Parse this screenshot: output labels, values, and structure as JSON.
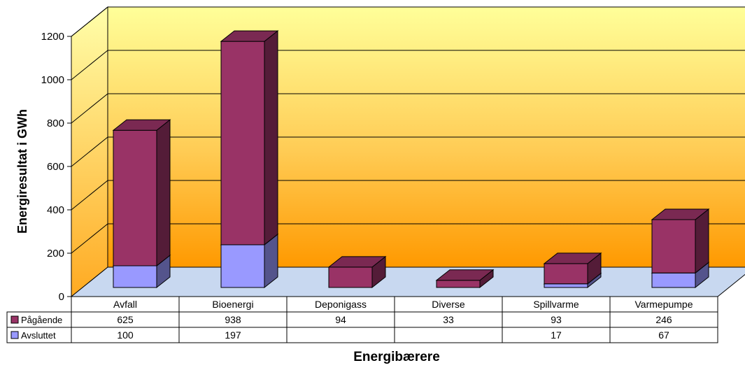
{
  "chart_data": {
    "type": "bar",
    "stacked": true,
    "view": "3d",
    "categories": [
      "Avfall",
      "Bioenergi",
      "Deponigass",
      "Diverse",
      "Spillvarme",
      "Varmepumpe"
    ],
    "series": [
      {
        "name": "Avsluttet",
        "values": [
          100,
          197,
          null,
          null,
          17,
          67
        ]
      },
      {
        "name": "Pågående",
        "values": [
          625,
          938,
          94,
          33,
          93,
          246
        ]
      }
    ],
    "table_rows": [
      {
        "series": "Pågående",
        "cells": [
          "625",
          "938",
          "94",
          "33",
          "93",
          "246"
        ]
      },
      {
        "series": "Avsluttet",
        "cells": [
          "100",
          "197",
          "",
          "",
          "17",
          "67"
        ]
      }
    ],
    "xlabel": "Energibærere",
    "ylabel": "Energiresultat i GWh",
    "ylim": [
      0,
      1200
    ],
    "yticks": [
      "0",
      "200",
      "400",
      "600",
      "800",
      "1000",
      "1200"
    ],
    "grid": true,
    "legend": "data-table",
    "colors": {
      "Pågående": "#993366",
      "Avsluttet": "#9999ff",
      "wall_top": "#ffff99",
      "wall_bottom": "#ff9900",
      "floor": "#c8d8f0"
    }
  }
}
